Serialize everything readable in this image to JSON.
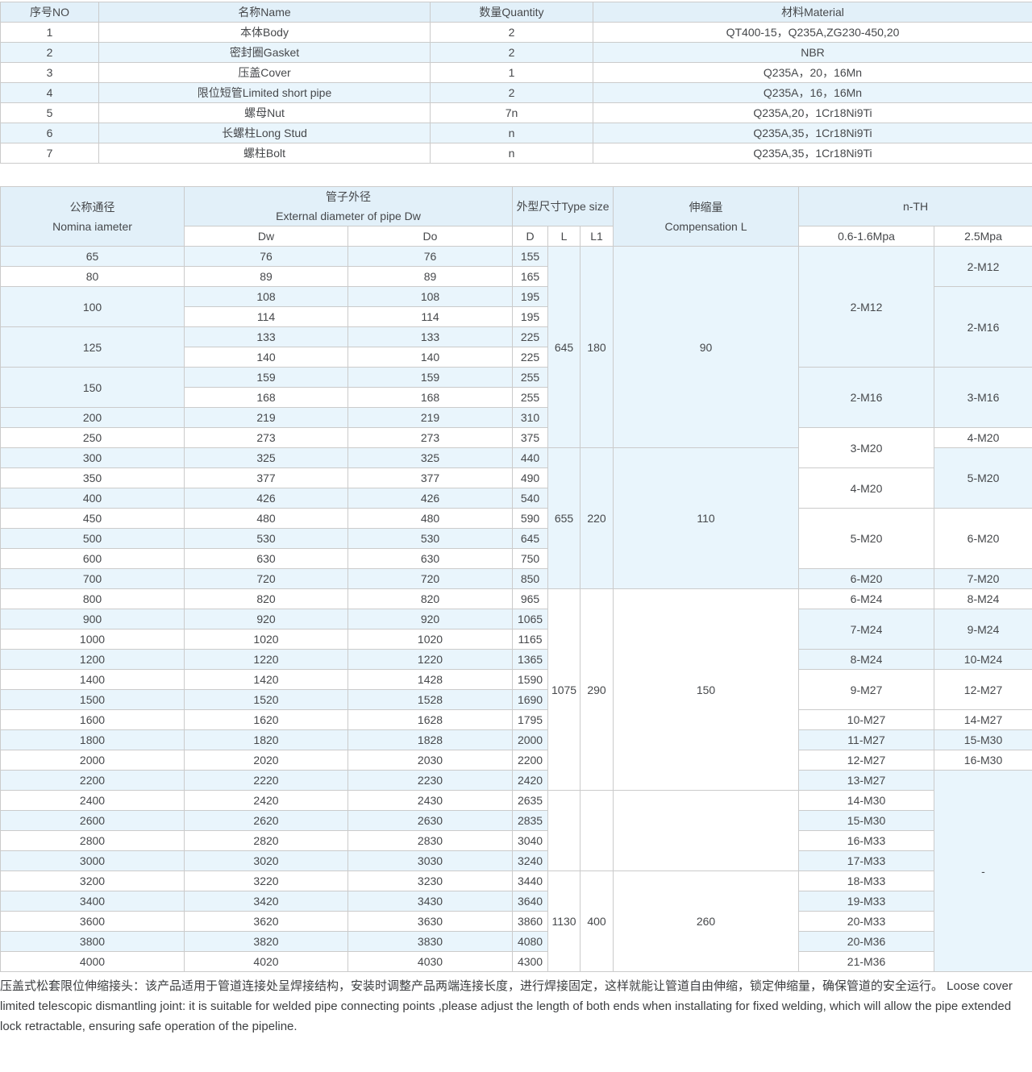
{
  "colors": {
    "header_bg": "#e2f0f9",
    "zebra_bg": "#e9f5fc",
    "border": "#cbcbcb",
    "text": "#46484b"
  },
  "parts_table": {
    "headers": [
      "序号NO",
      "名称Name",
      "数量Quantity",
      "材料Material"
    ],
    "rows": [
      [
        "1",
        "本体Body",
        "2",
        "QT400-15，Q235A,ZG230-450,20"
      ],
      [
        "2",
        "密封圈Gasket",
        "2",
        "NBR"
      ],
      [
        "3",
        "压盖Cover",
        "1",
        "Q235A，20，16Mn"
      ],
      [
        "4",
        "限位短管Limited short pipe",
        "2",
        "Q235A，16，16Mn"
      ],
      [
        "5",
        "螺母Nut",
        "7n",
        "Q235A,20，1Cr18Ni9Ti"
      ],
      [
        "6",
        "长螺柱Long Stud",
        "n",
        "Q235A,35，1Cr18Ni9Ti"
      ],
      [
        "7",
        "螺柱Bolt",
        "n",
        "Q235A,35，1Cr18Ni9Ti"
      ]
    ]
  },
  "spec_table": {
    "header": {
      "nominal_cn": "公称通径",
      "nominal_en": "Nomina iameter",
      "pipe_cn": "管子外径",
      "pipe_en": "External diameter of pipe Dw",
      "dw": "Dw",
      "do": "Do",
      "type_size": "外型尺寸Type size",
      "d": "D",
      "l": "L",
      "l1": "L1",
      "comp_cn": "伸缩量",
      "comp_en": "Compensation L",
      "nth": "n-TH",
      "mpa_low": "0.6-1.6Mpa",
      "mpa_high": "2.5Mpa"
    },
    "body": [
      {
        "name": "nominal",
        "cells": [
          {
            "v": "65"
          },
          {
            "v": "80"
          },
          {
            "v": "100",
            "s": 2
          },
          {
            "v": "125",
            "s": 2
          },
          {
            "v": "150",
            "s": 2
          },
          {
            "v": "200"
          },
          {
            "v": "250"
          },
          {
            "v": "300"
          },
          {
            "v": "350"
          },
          {
            "v": "400"
          },
          {
            "v": "450"
          },
          {
            "v": "500"
          },
          {
            "v": "600"
          },
          {
            "v": "700"
          },
          {
            "v": "800"
          },
          {
            "v": "900"
          },
          {
            "v": "1000"
          },
          {
            "v": "1200"
          },
          {
            "v": "1400"
          },
          {
            "v": "1500"
          },
          {
            "v": "1600"
          },
          {
            "v": "1800"
          },
          {
            "v": "2000"
          },
          {
            "v": "2200"
          },
          {
            "v": "2400"
          },
          {
            "v": "2600"
          },
          {
            "v": "2800"
          },
          {
            "v": "3000"
          },
          {
            "v": "3200"
          },
          {
            "v": "3400"
          },
          {
            "v": "3600"
          },
          {
            "v": "3800"
          },
          {
            "v": "4000"
          }
        ]
      },
      {
        "name": "dw",
        "cells": [
          {
            "v": "76"
          },
          {
            "v": "89"
          },
          {
            "v": "108"
          },
          {
            "v": "114"
          },
          {
            "v": "133"
          },
          {
            "v": "140"
          },
          {
            "v": "159"
          },
          {
            "v": "168"
          },
          {
            "v": "219"
          },
          {
            "v": "273"
          },
          {
            "v": "325"
          },
          {
            "v": "377"
          },
          {
            "v": "426"
          },
          {
            "v": "480"
          },
          {
            "v": "530"
          },
          {
            "v": "630"
          },
          {
            "v": "720"
          },
          {
            "v": "820"
          },
          {
            "v": "920"
          },
          {
            "v": "1020"
          },
          {
            "v": "1220"
          },
          {
            "v": "1420"
          },
          {
            "v": "1520"
          },
          {
            "v": "1620"
          },
          {
            "v": "1820"
          },
          {
            "v": "2020"
          },
          {
            "v": "2220"
          },
          {
            "v": "2420"
          },
          {
            "v": "2620"
          },
          {
            "v": "2820"
          },
          {
            "v": "3020"
          },
          {
            "v": "3220"
          },
          {
            "v": "3420"
          },
          {
            "v": "3620"
          },
          {
            "v": "3820"
          },
          {
            "v": "4020"
          }
        ]
      },
      {
        "name": "do",
        "cells": [
          {
            "v": "76"
          },
          {
            "v": "89"
          },
          {
            "v": "108"
          },
          {
            "v": "114"
          },
          {
            "v": "133"
          },
          {
            "v": "140"
          },
          {
            "v": "159"
          },
          {
            "v": "168"
          },
          {
            "v": "219"
          },
          {
            "v": "273"
          },
          {
            "v": "325"
          },
          {
            "v": "377"
          },
          {
            "v": "426"
          },
          {
            "v": "480"
          },
          {
            "v": "530"
          },
          {
            "v": "630"
          },
          {
            "v": "720"
          },
          {
            "v": "820"
          },
          {
            "v": "920"
          },
          {
            "v": "1020"
          },
          {
            "v": "1220"
          },
          {
            "v": "1428"
          },
          {
            "v": "1528"
          },
          {
            "v": "1628"
          },
          {
            "v": "1828"
          },
          {
            "v": "2030"
          },
          {
            "v": "2230"
          },
          {
            "v": "2430"
          },
          {
            "v": "2630"
          },
          {
            "v": "2830"
          },
          {
            "v": "3030"
          },
          {
            "v": "3230"
          },
          {
            "v": "3430"
          },
          {
            "v": "3630"
          },
          {
            "v": "3830"
          },
          {
            "v": "4030"
          }
        ]
      },
      {
        "name": "d",
        "cells": [
          {
            "v": "155"
          },
          {
            "v": "165"
          },
          {
            "v": "195"
          },
          {
            "v": "195"
          },
          {
            "v": "225"
          },
          {
            "v": "225"
          },
          {
            "v": "255"
          },
          {
            "v": "255"
          },
          {
            "v": "310"
          },
          {
            "v": "375"
          },
          {
            "v": "440"
          },
          {
            "v": "490"
          },
          {
            "v": "540"
          },
          {
            "v": "590"
          },
          {
            "v": "645"
          },
          {
            "v": "750"
          },
          {
            "v": "850"
          },
          {
            "v": "965"
          },
          {
            "v": "1065"
          },
          {
            "v": "1165"
          },
          {
            "v": "1365"
          },
          {
            "v": "1590"
          },
          {
            "v": "1690"
          },
          {
            "v": "1795"
          },
          {
            "v": "2000"
          },
          {
            "v": "2200"
          },
          {
            "v": "2420"
          },
          {
            "v": "2635"
          },
          {
            "v": "2835"
          },
          {
            "v": "3040"
          },
          {
            "v": "3240"
          },
          {
            "v": "3440"
          },
          {
            "v": "3640"
          },
          {
            "v": "3860"
          },
          {
            "v": "4080"
          },
          {
            "v": "4300"
          }
        ]
      },
      {
        "name": "l",
        "cells": [
          {
            "v": "645",
            "s": 10
          },
          {
            "v": "655",
            "s": 7
          },
          {
            "v": "1075",
            "s": 10
          },
          {
            "v": "",
            "s": 4
          },
          {
            "v": "1130",
            "s": 5
          }
        ]
      },
      {
        "name": "l1",
        "cells": [
          {
            "v": "180",
            "s": 10
          },
          {
            "v": "220",
            "s": 7
          },
          {
            "v": "290",
            "s": 10
          },
          {
            "v": "",
            "s": 4
          },
          {
            "v": "400",
            "s": 5
          }
        ]
      },
      {
        "name": "compensation",
        "cells": [
          {
            "v": "90",
            "s": 10
          },
          {
            "v": "110",
            "s": 7
          },
          {
            "v": "150",
            "s": 10
          },
          {
            "v": "",
            "s": 4
          },
          {
            "v": "260",
            "s": 5
          }
        ]
      },
      {
        "name": "nth-low",
        "cells": [
          {
            "v": "2-M12",
            "s": 6
          },
          {
            "v": "2-M16",
            "s": 3
          },
          {
            "v": "3-M20",
            "s": 2
          },
          {
            "v": "4-M20",
            "s": 2
          },
          {
            "v": "5-M20",
            "s": 3
          },
          {
            "v": "6-M20"
          },
          {
            "v": "6-M24"
          },
          {
            "v": "7-M24",
            "s": 2
          },
          {
            "v": "8-M24"
          },
          {
            "v": "9-M27",
            "s": 2
          },
          {
            "v": "10-M27"
          },
          {
            "v": "11-M27"
          },
          {
            "v": "12-M27"
          },
          {
            "v": "13-M27"
          },
          {
            "v": "14-M30"
          },
          {
            "v": "15-M30"
          },
          {
            "v": "16-M33"
          },
          {
            "v": "17-M33"
          },
          {
            "v": "18-M33"
          },
          {
            "v": "19-M33"
          },
          {
            "v": "20-M33"
          },
          {
            "v": "20-M36"
          },
          {
            "v": "21-M36"
          }
        ]
      },
      {
        "name": "nth-high",
        "cells": [
          {
            "v": "2-M12",
            "s": 2
          },
          {
            "v": "2-M16",
            "s": 4
          },
          {
            "v": "3-M16",
            "s": 3
          },
          {
            "v": "4-M20"
          },
          {
            "v": "5-M20",
            "s": 3
          },
          {
            "v": "6-M20",
            "s": 3
          },
          {
            "v": "7-M20"
          },
          {
            "v": "8-M24"
          },
          {
            "v": "9-M24",
            "s": 2
          },
          {
            "v": "10-M24"
          },
          {
            "v": "12-M27",
            "s": 2
          },
          {
            "v": "14-M27"
          },
          {
            "v": "15-M30"
          },
          {
            "v": "16-M30"
          },
          {
            "v": "-",
            "s": 10
          }
        ]
      }
    ]
  },
  "notes": {
    "text": "压盖式松套限位伸缩接头：该产品适用于管道连接处呈焊接结构，安装时调整产品两端连接长度，进行焊接固定，这样就能让管道自由伸缩，锁定伸缩量，确保管道的安全运行。  Loose cover limited telescopic dismantling joint: it is suitable for welded pipe connecting points ,please adjust the length of both ends when installating for fixed welding, which will allow the pipe extended lock retractable, ensuring safe operation of the pipeline."
  }
}
